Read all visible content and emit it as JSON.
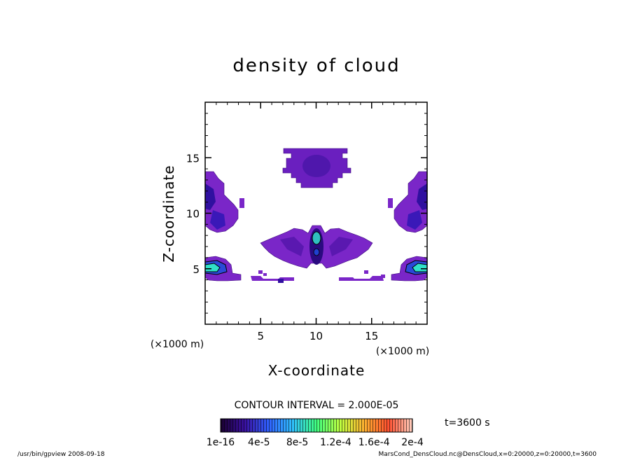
{
  "chart_data": {
    "type": "heatmap",
    "title": "density of cloud",
    "xlabel": "X-coordinate",
    "ylabel": "Z-coordinate",
    "x_unit": "(×1000 m)",
    "z_unit": "(×1000 m)",
    "xlim": [
      0,
      20
    ],
    "ylim": [
      0,
      20
    ],
    "x_ticks": [
      5,
      10,
      15
    ],
    "y_ticks": [
      5,
      10,
      15
    ],
    "x_tick_labels": [
      "5",
      "10",
      "15"
    ],
    "y_tick_labels": [
      "5",
      "10",
      "15"
    ],
    "contour_interval_label": "CONTOUR INTERVAL = 2.000E-05",
    "time_label": "t=3600 s",
    "colorbar": {
      "tick_labels": [
        "1e-16",
        "4e-5",
        "8e-5",
        "1.2e-4",
        "1.6e-4",
        "2e-4"
      ],
      "values": [
        1e-16,
        4e-05,
        8e-05,
        0.00012,
        0.00016,
        0.0002
      ],
      "stops": [
        "#1a0030",
        "#3a10a0",
        "#3060ff",
        "#30c0ff",
        "#40ff80",
        "#c0ff40",
        "#ffb030",
        "#ff5030",
        "#ffd0c0"
      ]
    },
    "regions": [
      {
        "name": "upper-center-cloud",
        "x": [
          6.9,
          13.2
        ],
        "z": [
          12.2,
          15.8
        ],
        "level": 0.2
      },
      {
        "name": "middle-center-cloud",
        "x": [
          5.0,
          15.0
        ],
        "z": [
          5.0,
          8.6
        ],
        "level": 0.35
      },
      {
        "name": "left-edge-upper",
        "x": [
          0,
          3.5
        ],
        "z": [
          8.0,
          13.2
        ],
        "level": 0.45
      },
      {
        "name": "right-edge-upper",
        "x": [
          16.5,
          20
        ],
        "z": [
          8.0,
          13.2
        ],
        "level": 0.45
      },
      {
        "name": "left-edge-lower",
        "x": [
          0,
          3.2
        ],
        "z": [
          3.8,
          5.9
        ],
        "level": 0.6
      },
      {
        "name": "right-edge-lower",
        "x": [
          16.8,
          20
        ],
        "z": [
          3.8,
          5.9
        ],
        "level": 0.6
      }
    ]
  },
  "footer": {
    "left": "/usr/bin/gpview   2008-09-18",
    "right": "MarsCond_DensCloud.nc@DensCloud,x=0:20000,z=0:20000,t=3600"
  }
}
